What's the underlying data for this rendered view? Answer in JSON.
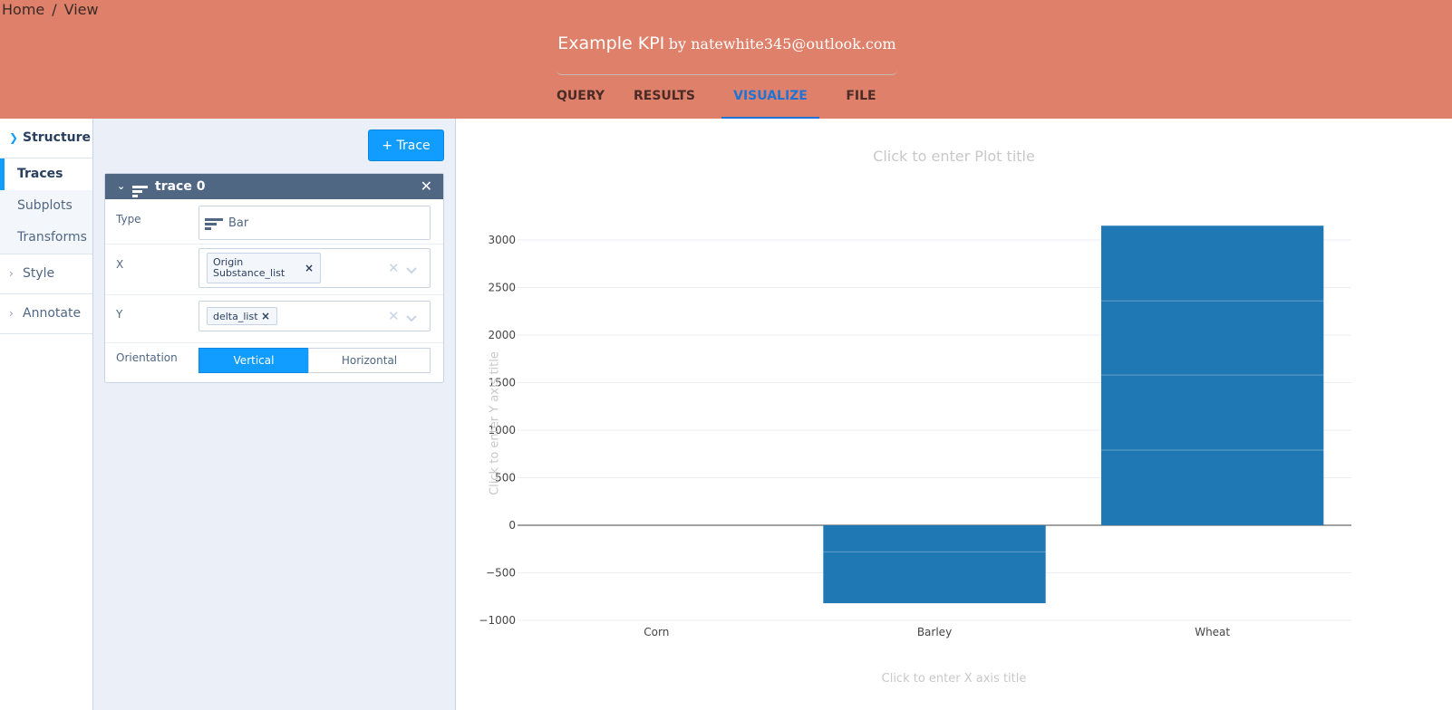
{
  "breadcrumb": {
    "home": "Home",
    "separator": "/",
    "current": "View"
  },
  "header": {
    "title": "Example KPI",
    "byline": "by natewhite345@outlook.com"
  },
  "tabs": [
    {
      "label": "QUERY",
      "active": false
    },
    {
      "label": "RESULTS",
      "active": false
    },
    {
      "label": "VISUALIZE",
      "active": true
    },
    {
      "label": "FILE",
      "active": false
    }
  ],
  "sidebar": {
    "structure": {
      "label": "Structure",
      "items": [
        "Traces",
        "Subplots",
        "Transforms"
      ]
    },
    "style": "Style",
    "annotate": "Annotate"
  },
  "panel": {
    "add_trace_label": "+ Trace",
    "trace": {
      "name": "trace 0",
      "type_label": "Type",
      "type_value": "Bar",
      "x_label": "X",
      "x_value_line1": "Origin",
      "x_value_line2": "Substance_list",
      "y_label": "Y",
      "y_value": "delta_list",
      "orientation_label": "Orientation",
      "orientation_options": [
        "Vertical",
        "Horizontal"
      ],
      "orientation_selected": "Vertical"
    }
  },
  "plot": {
    "title_placeholder": "Click to enter Plot title",
    "x_title_placeholder": "Click to enter X axis title",
    "y_title_placeholder": "Click to enter Y axis title"
  },
  "colors": {
    "header_bg": "#df806b",
    "accent": "#119dff",
    "active_tab": "#1d74d6",
    "bar": "#1f77b4",
    "panel_bg": "#ebf0f8",
    "trace_header": "#506784"
  },
  "chart_data": {
    "type": "bar",
    "categories": [
      "Corn",
      "Barley",
      "Wheat"
    ],
    "values": [
      0,
      -820,
      3150
    ],
    "stack_boundaries": [
      [],
      [
        -280
      ],
      [
        790,
        1580,
        2360
      ]
    ],
    "yticks": [
      -1000,
      -500,
      0,
      500,
      1000,
      1500,
      2000,
      2500,
      3000
    ],
    "ylim": [
      -1000,
      3000
    ],
    "title": "",
    "xlabel": "",
    "ylabel": "",
    "grid": true,
    "legend": false
  }
}
